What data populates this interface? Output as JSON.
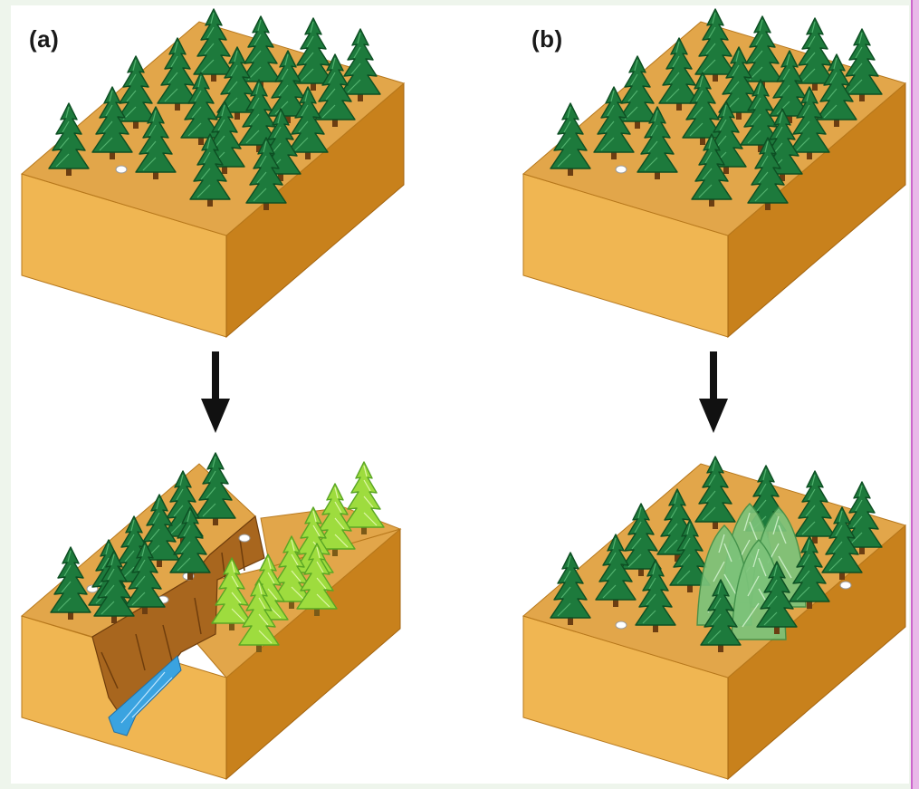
{
  "panels": [
    {
      "id": "a",
      "label": "(a)"
    },
    {
      "id": "b",
      "label": "(b)"
    }
  ],
  "colors": {
    "soil_top": "#e2a64a",
    "soil_front": "#f0b652",
    "soil_side": "#c8811c",
    "tree_dark": "#1d7a3c",
    "tree_dark_edge": "#0d4f23",
    "tree_light": "#9edc3e",
    "tree_light_edge": "#5aa624",
    "tree_pale": "#7cc37a",
    "cliff": "#a8661e",
    "water": "#3aa3e0",
    "arrow": "#111111"
  },
  "icons": [
    "pine-tree-icon",
    "down-arrow-icon",
    "pebble-icon"
  ]
}
